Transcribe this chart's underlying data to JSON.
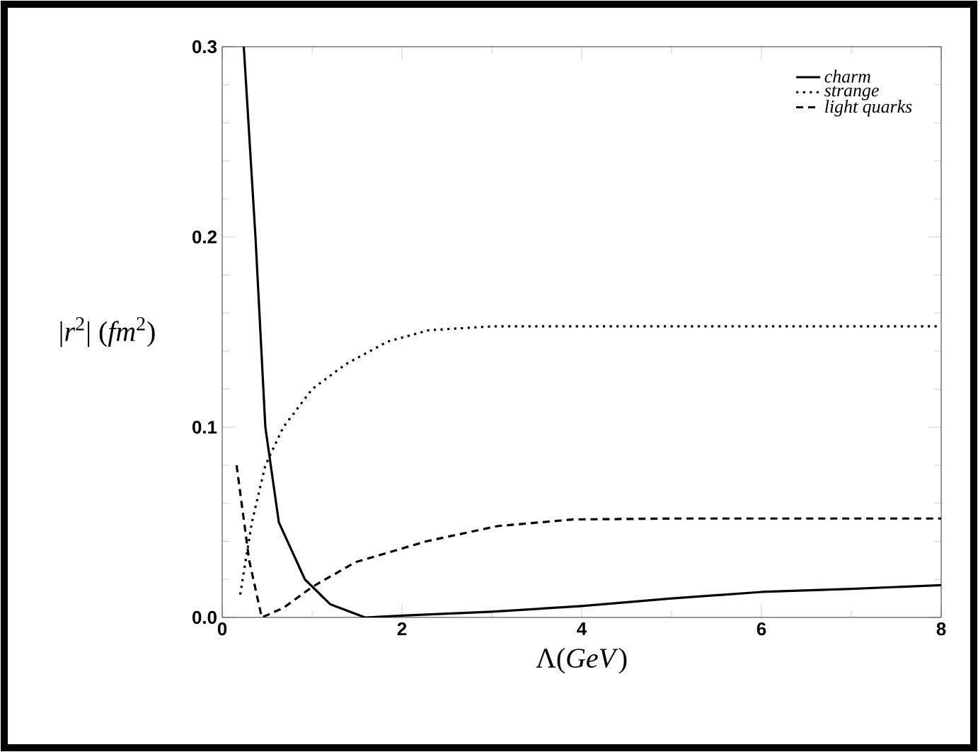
{
  "chart_data": {
    "type": "line",
    "xlabel": "Λ(*GeV*)",
    "ylabel": "|*r*$^{2}$| (*fm*$^{2}$)",
    "xlim": [
      0,
      8
    ],
    "ylim": [
      0,
      0.3
    ],
    "xticks": [
      0,
      2,
      4,
      6,
      8
    ],
    "yticks": [
      {
        "value": 0,
        "label": "0.0"
      },
      0.1,
      0.2,
      0.3
    ],
    "grid": false,
    "legend": "top right",
    "marker": "none",
    "series": [
      {
        "name": "charm",
        "color": "#000000",
        "line_style": "solid",
        "x": [
          0.24,
          0.37,
          0.48,
          0.63,
          0.92,
          1.2,
          1.59,
          2,
          3,
          4,
          5,
          6,
          7,
          8
        ],
        "values": [
          0.3,
          0.2,
          0.1,
          0.05,
          0.02,
          0.007,
          0,
          0.001,
          0.003,
          0.006,
          0.01,
          0.0134,
          0.015,
          0.017
        ]
      },
      {
        "name": "strange",
        "color": "#000000",
        "line_style": "dotted",
        "x": [
          0.2,
          0.33,
          0.48,
          0.68,
          1.0,
          1.37,
          1.84,
          2.3,
          3,
          4,
          5,
          6,
          7,
          8
        ],
        "values": [
          0.012,
          0.05,
          0.08,
          0.1,
          0.12,
          0.133,
          0.145,
          0.151,
          0.153,
          0.153,
          0.153,
          0.153,
          0.153,
          0.153
        ]
      },
      {
        "name": "light quarks",
        "color": "#000000",
        "line_style": "dashed",
        "x": [
          0.16,
          0.3,
          0.44,
          0.68,
          1.0,
          1.48,
          2.27,
          3.06,
          3.9,
          5,
          6,
          7,
          8
        ],
        "values": [
          0.08,
          0.03,
          0,
          0.005,
          0.016,
          0.029,
          0.04,
          0.048,
          0.0515,
          0.052,
          0.052,
          0.052,
          0.052
        ]
      }
    ]
  }
}
